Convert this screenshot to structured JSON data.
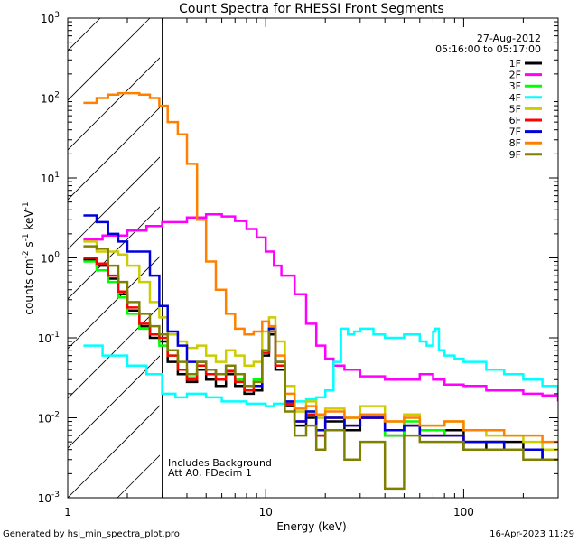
{
  "chart_data": {
    "type": "line",
    "title": "Count Spectra for RHESSI Front Segments",
    "xlabel": "Energy (keV)",
    "ylabel_base": "counts cm",
    "ylabel_parts": [
      "counts cm",
      "-2",
      " s",
      "-1",
      " keV",
      "-1"
    ],
    "xscale": "log",
    "yscale": "log",
    "xlim": [
      1,
      300
    ],
    "ylim": [
      0.001,
      1000
    ],
    "x_ticks": [
      {
        "v": 10,
        "label": "10"
      },
      {
        "v": 100,
        "label": "100"
      },
      {
        "v": 1,
        "label": "1"
      }
    ],
    "y_ticks": [
      {
        "v": 0.001,
        "base": "10",
        "exp": "-3"
      },
      {
        "v": 0.01,
        "base": "10",
        "exp": "-2"
      },
      {
        "v": 0.1,
        "base": "10",
        "exp": "-1"
      },
      {
        "v": 1,
        "base": "10",
        "exp": "0"
      },
      {
        "v": 10,
        "base": "10",
        "exp": "1"
      },
      {
        "v": 100,
        "base": "10",
        "exp": "2"
      },
      {
        "v": 1000,
        "base": "10",
        "exp": "3"
      }
    ],
    "date_label": "27-Aug-2012",
    "time_label": "05:16:00 to 05:17:00",
    "hatched_region_max_keV": 3,
    "annotations": [
      "Includes Background",
      "Att A0, FDecim 1"
    ],
    "series": [
      {
        "name": "1F",
        "color": "#000000",
        "x": [
          1.2,
          1.4,
          1.6,
          1.8,
          2.0,
          2.3,
          2.6,
          2.9,
          3.2,
          3.6,
          4.0,
          4.5,
          5.0,
          5.6,
          6.3,
          7.0,
          7.8,
          8.7,
          9.6,
          10.4,
          11.2,
          12.5,
          14,
          16,
          18,
          20,
          25,
          30,
          40,
          50,
          60,
          80,
          100,
          130,
          160,
          200,
          250,
          300
        ],
        "y": [
          0.95,
          0.8,
          0.55,
          0.35,
          0.22,
          0.14,
          0.1,
          0.09,
          0.05,
          0.035,
          0.028,
          0.04,
          0.03,
          0.025,
          0.035,
          0.025,
          0.02,
          0.022,
          0.06,
          0.11,
          0.04,
          0.014,
          0.008,
          0.01,
          0.006,
          0.009,
          0.007,
          0.01,
          0.006,
          0.008,
          0.006,
          0.007,
          0.004,
          0.005,
          0.005,
          0.004,
          0.003,
          0.003
        ]
      },
      {
        "name": "2F",
        "color": "#ff00ff",
        "x": [
          1.2,
          1.5,
          2,
          2.5,
          3,
          4,
          5,
          6,
          7,
          8,
          9,
          10,
          11,
          12,
          14,
          16,
          18,
          20,
          22,
          25,
          30,
          40,
          50,
          60,
          70,
          80,
          100,
          130,
          160,
          200,
          250,
          300
        ],
        "y": [
          1.7,
          1.9,
          2.2,
          2.5,
          2.8,
          3.2,
          3.5,
          3.3,
          2.9,
          2.3,
          1.8,
          1.2,
          0.8,
          0.6,
          0.35,
          0.15,
          0.08,
          0.055,
          0.045,
          0.04,
          0.033,
          0.03,
          0.03,
          0.035,
          0.03,
          0.026,
          0.025,
          0.022,
          0.022,
          0.02,
          0.019,
          0.016
        ]
      },
      {
        "name": "3F",
        "color": "#00ff00",
        "x": [
          1.2,
          1.4,
          1.6,
          1.8,
          2.0,
          2.3,
          2.6,
          2.9,
          3.2,
          3.6,
          4.0,
          4.5,
          5.0,
          5.6,
          6.3,
          7.0,
          7.8,
          8.7,
          9.6,
          10.4,
          11.2,
          12.5,
          14,
          16,
          18,
          20,
          25,
          30,
          40,
          50,
          60,
          80,
          100,
          130,
          160,
          200,
          250,
          300
        ],
        "y": [
          0.9,
          0.7,
          0.5,
          0.32,
          0.2,
          0.13,
          0.11,
          0.08,
          0.06,
          0.04,
          0.032,
          0.045,
          0.035,
          0.03,
          0.04,
          0.03,
          0.025,
          0.03,
          0.07,
          0.13,
          0.05,
          0.015,
          0.009,
          0.012,
          0.007,
          0.01,
          0.008,
          0.011,
          0.006,
          0.009,
          0.007,
          0.006,
          0.005,
          0.005,
          0.004,
          0.004,
          0.003,
          0.003
        ]
      },
      {
        "name": "4F",
        "color": "#00ffff",
        "x": [
          1.2,
          1.5,
          2,
          2.5,
          3,
          3.5,
          4,
          5,
          6,
          7,
          8,
          9,
          10,
          11,
          12,
          14,
          16,
          18,
          20,
          22,
          24,
          26,
          28,
          30,
          35,
          40,
          50,
          60,
          65,
          70,
          72,
          75,
          80,
          90,
          100,
          130,
          160,
          200,
          250,
          300
        ],
        "y": [
          0.08,
          0.06,
          0.045,
          0.035,
          0.02,
          0.018,
          0.02,
          0.018,
          0.016,
          0.016,
          0.015,
          0.015,
          0.014,
          0.015,
          0.015,
          0.016,
          0.017,
          0.018,
          0.022,
          0.05,
          0.13,
          0.11,
          0.12,
          0.13,
          0.11,
          0.1,
          0.11,
          0.09,
          0.08,
          0.12,
          0.13,
          0.07,
          0.06,
          0.055,
          0.05,
          0.04,
          0.035,
          0.03,
          0.025,
          0.02
        ]
      },
      {
        "name": "5F",
        "color": "#cccc00",
        "x": [
          1.2,
          1.4,
          1.6,
          1.8,
          2.0,
          2.3,
          2.6,
          2.9,
          3.2,
          3.6,
          4.0,
          4.5,
          5.0,
          5.6,
          6.3,
          7.0,
          7.8,
          8.7,
          9.6,
          10.4,
          11.2,
          12.5,
          14,
          16,
          18,
          20,
          25,
          30,
          40,
          50,
          60,
          80,
          100,
          130,
          160,
          200,
          250,
          300
        ],
        "y": [
          1.6,
          1.2,
          1.2,
          1.1,
          0.8,
          0.5,
          0.28,
          0.18,
          0.11,
          0.09,
          0.075,
          0.08,
          0.06,
          0.05,
          0.07,
          0.06,
          0.045,
          0.05,
          0.12,
          0.18,
          0.09,
          0.025,
          0.012,
          0.016,
          0.01,
          0.013,
          0.01,
          0.014,
          0.009,
          0.011,
          0.008,
          0.009,
          0.007,
          0.006,
          0.006,
          0.005,
          0.004,
          0.004
        ]
      },
      {
        "name": "6F",
        "color": "#ff0000",
        "x": [
          1.2,
          1.4,
          1.6,
          1.8,
          2.0,
          2.3,
          2.6,
          2.9,
          3.2,
          3.6,
          4.0,
          4.5,
          5.0,
          5.6,
          6.3,
          7.0,
          7.8,
          8.7,
          9.6,
          10.4,
          11.2,
          12.5,
          14,
          16,
          18,
          20,
          25,
          30,
          40,
          50,
          60,
          80,
          100,
          130,
          160,
          200,
          250,
          300
        ],
        "y": [
          1.0,
          0.85,
          0.6,
          0.38,
          0.24,
          0.15,
          0.11,
          0.1,
          0.06,
          0.04,
          0.03,
          0.045,
          0.035,
          0.03,
          0.038,
          0.028,
          0.022,
          0.025,
          0.065,
          0.12,
          0.045,
          0.015,
          0.009,
          0.011,
          0.006,
          0.01,
          0.008,
          0.01,
          0.007,
          0.008,
          0.006,
          0.006,
          0.005,
          0.005,
          0.004,
          0.004,
          0.003,
          0.003
        ]
      },
      {
        "name": "7F",
        "color": "#0000dd",
        "x": [
          1.2,
          1.4,
          1.6,
          1.8,
          2.0,
          2.3,
          2.6,
          2.9,
          3.2,
          3.6,
          4.0,
          4.5,
          5.0,
          5.6,
          6.3,
          7.0,
          7.8,
          8.7,
          9.6,
          10.4,
          11.2,
          12.5,
          14,
          16,
          18,
          20,
          25,
          30,
          40,
          50,
          60,
          80,
          100,
          130,
          160,
          200,
          250,
          300
        ],
        "y": [
          3.4,
          2.8,
          2.0,
          1.6,
          1.2,
          1.2,
          0.6,
          0.25,
          0.12,
          0.08,
          0.05,
          0.05,
          0.04,
          0.035,
          0.045,
          0.035,
          0.025,
          0.025,
          0.07,
          0.13,
          0.05,
          0.016,
          0.009,
          0.012,
          0.007,
          0.01,
          0.008,
          0.01,
          0.007,
          0.008,
          0.006,
          0.006,
          0.005,
          0.005,
          0.004,
          0.004,
          0.003,
          0.003
        ]
      },
      {
        "name": "8F",
        "color": "#ff8000",
        "x": [
          1.2,
          1.4,
          1.6,
          1.8,
          2.0,
          2.3,
          2.6,
          2.9,
          3.2,
          3.6,
          4.0,
          4.5,
          5.0,
          5.6,
          6.3,
          7.0,
          7.8,
          8.7,
          9.6,
          10.4,
          11.2,
          12.5,
          14,
          16,
          18,
          20,
          25,
          30,
          40,
          50,
          60,
          80,
          100,
          130,
          160,
          200,
          250,
          300
        ],
        "y": [
          87,
          100,
          110,
          115,
          115,
          110,
          100,
          80,
          50,
          35,
          15,
          3,
          0.9,
          0.4,
          0.2,
          0.13,
          0.11,
          0.12,
          0.16,
          0.14,
          0.06,
          0.02,
          0.013,
          0.014,
          0.011,
          0.012,
          0.01,
          0.011,
          0.009,
          0.01,
          0.008,
          0.009,
          0.007,
          0.007,
          0.006,
          0.006,
          0.005,
          0.005
        ]
      },
      {
        "name": "9F",
        "color": "#808000",
        "x": [
          1.2,
          1.4,
          1.6,
          1.8,
          2.0,
          2.3,
          2.6,
          2.9,
          3.2,
          3.6,
          4.0,
          4.5,
          5.0,
          5.6,
          6.3,
          7.0,
          7.8,
          8.7,
          9.6,
          10.4,
          11.2,
          12.5,
          14,
          16,
          18,
          20,
          25,
          30,
          40,
          50,
          60,
          80,
          100,
          130,
          160,
          200,
          250,
          300
        ],
        "y": [
          1.4,
          1.3,
          0.8,
          0.5,
          0.28,
          0.2,
          0.14,
          0.11,
          0.07,
          0.05,
          0.035,
          0.05,
          0.04,
          0.035,
          0.045,
          0.035,
          0.025,
          0.028,
          0.07,
          0.12,
          0.05,
          0.012,
          0.006,
          0.008,
          0.004,
          0.007,
          0.003,
          0.005,
          0.0013,
          0.006,
          0.005,
          0.005,
          0.004,
          0.004,
          0.004,
          0.003,
          0.003,
          0.003
        ]
      }
    ]
  },
  "footer": {
    "generated_by": "Generated by hsi_min_spectra_plot.pro",
    "timestamp": "16-Apr-2023 11:29"
  }
}
